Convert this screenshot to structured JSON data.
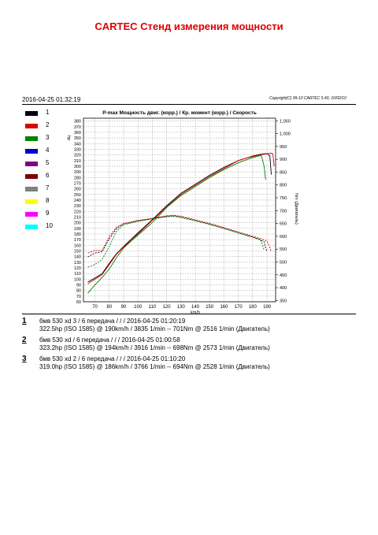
{
  "header": {
    "title": "CARTEC Стенд измерения мощности",
    "timestamp": "2016-04-25 01:32:19",
    "copyright": "Copyright(C) 99-10 CARTEC 5.40, 10/02/10"
  },
  "legend": [
    {
      "label": "1",
      "color": "#000000"
    },
    {
      "label": "2",
      "color": "#e00000"
    },
    {
      "label": "3",
      "color": "#008000"
    },
    {
      "label": "4",
      "color": "#0000d0"
    },
    {
      "label": "5",
      "color": "#800080"
    },
    {
      "label": "6",
      "color": "#800000"
    },
    {
      "label": "7",
      "color": "#808080"
    },
    {
      "label": "8",
      "color": "#ffff00"
    },
    {
      "label": "9",
      "color": "#ff00ff"
    },
    {
      "label": "10",
      "color": "#00ffff"
    }
  ],
  "runs": [
    {
      "num": "1",
      "line1": "бмв 530 xd 3 / 6 передача /  /  / 2016-04-25 01:20:19",
      "line2": "322.5hp (ISO 1585) @ 190km/h / 3835 1/min -- 701Nm @ 2516 1/min (Двигатель)"
    },
    {
      "num": "2",
      "line1": "бмв 530 xd / 6 передача /  /  / 2016-04-25 01:00:58",
      "line2": "323.2hp (ISO 1585) @ 194km/h / 3916 1/min -- 698Nm @ 2573 1/min (Двигатель)"
    },
    {
      "num": "3",
      "line1": "бмв 530 xd 2 / 6 передача /  /  / 2016-04-25 01:10:20",
      "line2": "319.0hp (ISO 1585) @ 186km/h / 3766 1/min -- 694Nm @ 2528 1/min (Двигатель)"
    }
  ],
  "chart_data": {
    "type": "line",
    "title": "P-max Мощность двиг. (корр.) / Кр. момент (корр.) / Скорость",
    "xlabel": "km/h",
    "ylabel_left": "hp",
    "ylabel_right": "Nm (Двигатель)",
    "xlim": [
      62,
      196
    ],
    "ylim_left": [
      60,
      385
    ],
    "ylim_right": [
      345,
      1060
    ],
    "x_ticks": [
      70,
      80,
      90,
      100,
      110,
      120,
      130,
      140,
      150,
      160,
      170,
      180,
      190
    ],
    "y_left_ticks": [
      60,
      70,
      80,
      90,
      100,
      110,
      120,
      130,
      140,
      150,
      160,
      170,
      180,
      190,
      200,
      210,
      220,
      230,
      240,
      250,
      260,
      270,
      280,
      290,
      300,
      310,
      320,
      330,
      340,
      350,
      360,
      370,
      380
    ],
    "y_right_ticks": [
      350,
      400,
      450,
      500,
      550,
      600,
      650,
      700,
      750,
      800,
      850,
      900,
      950,
      "1,000",
      "1,050"
    ],
    "grid": true,
    "series": [
      {
        "name": "1",
        "color": "#000000",
        "kind": "power",
        "x": [
          65,
          70,
          75,
          80,
          85,
          90,
          95,
          100,
          110,
          120,
          130,
          140,
          150,
          160,
          170,
          175,
          180,
          185,
          188,
          190,
          192,
          193
        ],
        "y": [
          95,
          102,
          110,
          128,
          145,
          158,
          170,
          182,
          205,
          230,
          252,
          268,
          284,
          298,
          310,
          314,
          318,
          321,
          322,
          322.5,
          318,
          285
        ]
      },
      {
        "name": "2",
        "color": "#e00000",
        "kind": "power",
        "x": [
          65,
          70,
          75,
          80,
          85,
          90,
          95,
          100,
          110,
          120,
          130,
          140,
          150,
          160,
          170,
          175,
          180,
          185,
          190,
          193,
          194,
          195
        ],
        "y": [
          92,
          100,
          108,
          126,
          144,
          157,
          168,
          180,
          204,
          228,
          250,
          266,
          282,
          296,
          310,
          314,
          317,
          320,
          322,
          323,
          322,
          300
        ]
      },
      {
        "name": "3",
        "color": "#008000",
        "kind": "power",
        "x": [
          65,
          70,
          75,
          80,
          85,
          90,
          95,
          100,
          110,
          120,
          130,
          140,
          150,
          160,
          170,
          175,
          180,
          184,
          186,
          188,
          189
        ],
        "y": [
          75,
          90,
          103,
          118,
          138,
          155,
          167,
          178,
          200,
          227,
          248,
          264,
          280,
          294,
          306,
          311,
          315,
          318,
          319,
          300,
          276
        ]
      },
      {
        "name": "1",
        "color": "#000000",
        "kind": "torque",
        "x": [
          65,
          70,
          75,
          80,
          85,
          90,
          100,
          110,
          120,
          125,
          130,
          140,
          150,
          160,
          170,
          180,
          185,
          188,
          189,
          190
        ],
        "y": [
          520,
          535,
          540,
          590,
          630,
          648,
          660,
          668,
          678,
          680,
          676,
          662,
          648,
          632,
          615,
          598,
          588,
          578,
          555,
          540
        ]
      },
      {
        "name": "2",
        "color": "#e00000",
        "kind": "torque",
        "x": [
          65,
          70,
          75,
          80,
          85,
          90,
          100,
          110,
          120,
          125,
          130,
          140,
          150,
          160,
          170,
          180,
          185,
          190,
          192,
          193
        ],
        "y": [
          535,
          545,
          545,
          600,
          635,
          650,
          662,
          670,
          680,
          682,
          678,
          664,
          650,
          634,
          617,
          600,
          592,
          582,
          555,
          540
        ]
      },
      {
        "name": "3",
        "color": "#008000",
        "kind": "torque",
        "x": [
          65,
          70,
          75,
          80,
          85,
          90,
          100,
          110,
          120,
          125,
          130,
          140,
          150,
          160,
          170,
          180,
          184,
          186,
          188
        ],
        "y": [
          480,
          490,
          510,
          560,
          620,
          645,
          658,
          668,
          676,
          678,
          672,
          660,
          646,
          630,
          612,
          596,
          588,
          580,
          545
        ]
      }
    ]
  }
}
